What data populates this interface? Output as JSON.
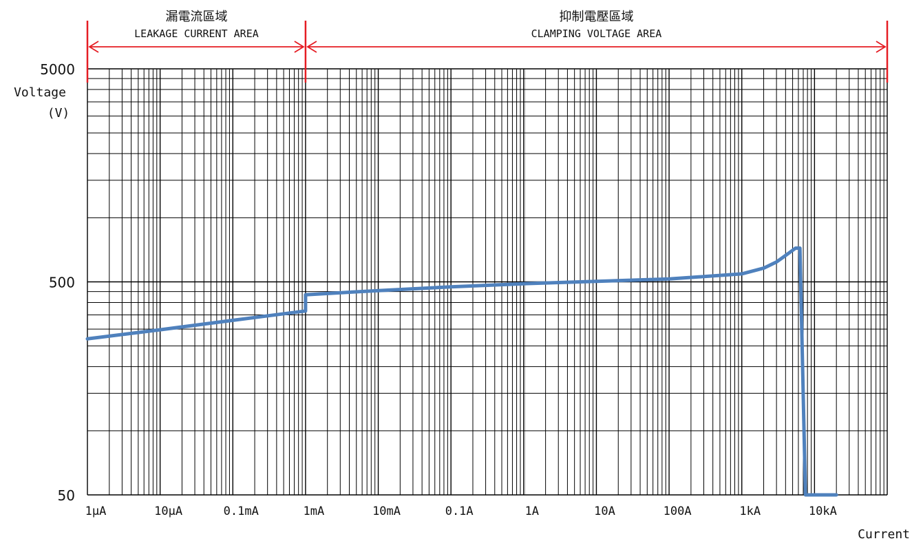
{
  "chart_data": {
    "type": "line",
    "title": "",
    "xlabel": "Current",
    "ylabel_line1": "Voltage",
    "ylabel_line2": "(V)",
    "x_scale": "log",
    "y_scale": "log",
    "xlim_amperes": [
      1e-06,
      100000
    ],
    "ylim_volts": [
      50,
      5000
    ],
    "grid": true,
    "x_ticks": [
      {
        "value": 1e-06,
        "label": "1μA"
      },
      {
        "value": 1e-05,
        "label": "10μA"
      },
      {
        "value": 0.0001,
        "label": "0.1mA"
      },
      {
        "value": 0.001,
        "label": "1mA"
      },
      {
        "value": 0.01,
        "label": "10mA"
      },
      {
        "value": 0.1,
        "label": "0.1A"
      },
      {
        "value": 1,
        "label": "1A"
      },
      {
        "value": 10,
        "label": "10A"
      },
      {
        "value": 100,
        "label": "100A"
      },
      {
        "value": 1000,
        "label": "1kA"
      },
      {
        "value": 10000,
        "label": "10kA"
      }
    ],
    "y_ticks": [
      {
        "value": 50,
        "label": "50"
      },
      {
        "value": 500,
        "label": "500"
      },
      {
        "value": 5000,
        "label": "5000"
      }
    ],
    "series": [
      {
        "color": "#4f81bd",
        "x": [
          1e-06,
          1e-05,
          0.0001,
          0.001,
          0.001,
          0.01,
          0.1,
          1,
          10,
          100,
          1000,
          2000,
          3000,
          4000,
          5500,
          6300,
          7500,
          10000,
          20000
        ],
        "y": [
          270,
          298,
          330,
          365,
          435,
          455,
          474,
          490,
          503,
          516,
          545,
          580,
          620,
          665,
          720,
          720,
          50,
          50,
          50
        ]
      }
    ],
    "regions": [
      {
        "label_zh": "漏電流區域",
        "label_en": "LEAKAGE CURRENT AREA",
        "from": 1e-06,
        "to": 0.001
      },
      {
        "label_zh": "抑制電壓區域",
        "label_en": "CLAMPING VOLTAGE AREA",
        "from": 0.001,
        "to": 100000
      }
    ],
    "region_color": "#e51c23"
  }
}
